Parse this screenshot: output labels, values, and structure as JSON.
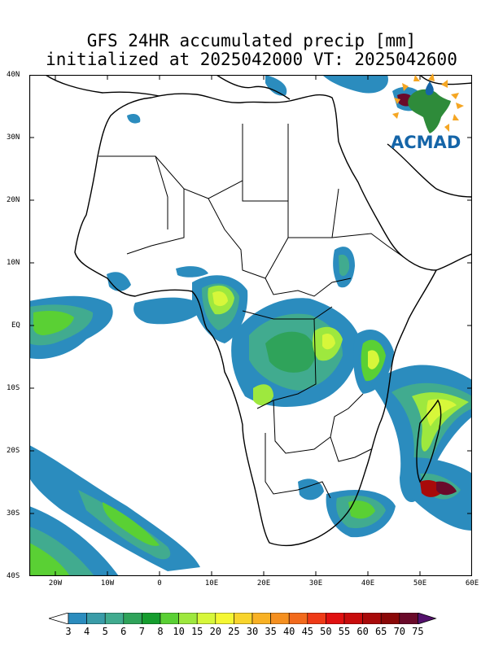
{
  "title_line1": "GFS 24HR accumulated precip [mm]",
  "title_line2": "initialized at 2025042000 VT: 2025042600",
  "logo_text": "ACMAD",
  "lat_labels": [
    "40N",
    "30N",
    "20N",
    "10N",
    "EQ",
    "10S",
    "20S",
    "30S",
    "40S"
  ],
  "lon_labels": [
    "20W",
    "10W",
    "0",
    "10E",
    "20E",
    "30E",
    "40E",
    "50E",
    "60E"
  ],
  "colorbar": {
    "labels": [
      "3",
      "4",
      "5",
      "6",
      "7",
      "8",
      "10",
      "15",
      "20",
      "25",
      "30",
      "35",
      "40",
      "45",
      "50",
      "55",
      "60",
      "65",
      "70",
      "75"
    ],
    "colors": [
      "#2b8cbe",
      "#3a9ca8",
      "#41ab8f",
      "#2fa35a",
      "#159d2e",
      "#5ad034",
      "#9ee83e",
      "#d7f73a",
      "#f5f733",
      "#f8d42c",
      "#f8b124",
      "#f59020",
      "#f26a1c",
      "#ef3a17",
      "#e01010",
      "#c80c0c",
      "#a80a0a",
      "#8a0808",
      "#6a0a2a",
      "#54116c"
    ]
  }
}
